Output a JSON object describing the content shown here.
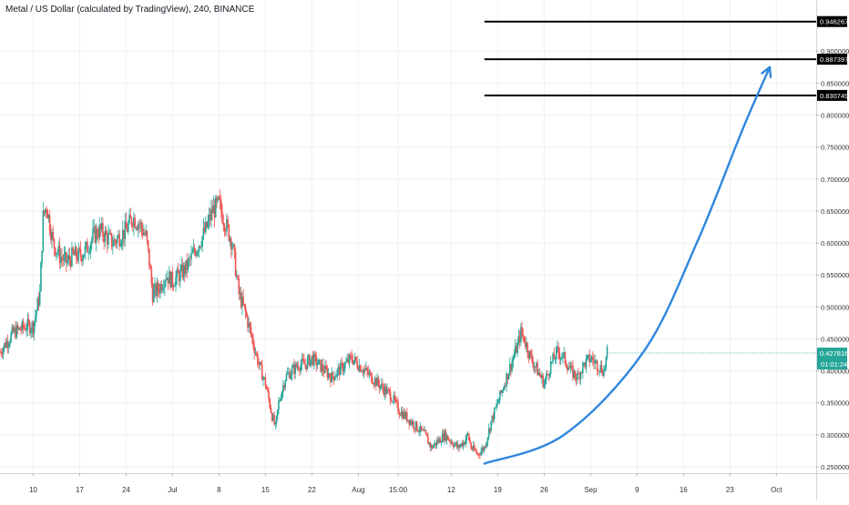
{
  "header": {
    "title": "Metal / US Dollar (calculated by TradingView), 240, BINANCE"
  },
  "chart_data": {
    "type": "candlestick",
    "symbol": "Metal / US Dollar",
    "interval": "240",
    "exchange": "BINANCE",
    "ylim": [
      0.24,
      0.98
    ],
    "y_ticks": [
      "0.250000",
      "0.300000",
      "0.350000",
      "0.400000",
      "0.450000",
      "0.500000",
      "0.550000",
      "0.600000",
      "0.650000",
      "0.700000",
      "0.750000",
      "0.800000",
      "0.850000",
      "0.900000"
    ],
    "y_tick_values": [
      0.25,
      0.3,
      0.35,
      0.4,
      0.45,
      0.5,
      0.55,
      0.6,
      0.65,
      0.7,
      0.75,
      0.8,
      0.85,
      0.9
    ],
    "x_ticks": [
      "10",
      "17",
      "24",
      "Jul",
      "8",
      "15",
      "22",
      "Aug",
      "15:00",
      "12",
      "19",
      "26",
      "Sep",
      "9",
      "16",
      "23",
      "Oct"
    ],
    "x_tick_index": [
      0,
      7,
      14,
      21,
      28,
      35,
      42,
      49,
      55,
      63,
      70,
      77,
      84,
      91,
      98,
      105,
      112
    ],
    "x_index_range": [
      -5,
      118
    ],
    "grid": true,
    "candle_colors": {
      "up": "#26a69a",
      "down": "#ef5350"
    },
    "close_path": [
      [
        -5,
        0.43
      ],
      [
        -3,
        0.46
      ],
      [
        -1,
        0.47
      ],
      [
        0,
        0.47
      ],
      [
        1,
        0.52
      ],
      [
        1.5,
        0.64
      ],
      [
        2,
        0.66
      ],
      [
        3,
        0.6
      ],
      [
        4,
        0.58
      ],
      [
        5,
        0.57
      ],
      [
        6,
        0.58
      ],
      [
        7,
        0.58
      ],
      [
        8,
        0.59
      ],
      [
        9,
        0.61
      ],
      [
        10,
        0.62
      ],
      [
        11,
        0.61
      ],
      [
        12,
        0.6
      ],
      [
        13,
        0.61
      ],
      [
        14,
        0.62
      ],
      [
        15,
        0.64
      ],
      [
        16,
        0.63
      ],
      [
        17,
        0.61
      ],
      [
        17.5,
        0.57
      ],
      [
        18,
        0.52
      ],
      [
        19,
        0.53
      ],
      [
        20,
        0.55
      ],
      [
        21,
        0.54
      ],
      [
        22,
        0.55
      ],
      [
        23,
        0.56
      ],
      [
        24,
        0.58
      ],
      [
        25,
        0.6
      ],
      [
        26,
        0.62
      ],
      [
        27,
        0.65
      ],
      [
        28,
        0.66
      ],
      [
        29,
        0.63
      ],
      [
        30,
        0.6
      ],
      [
        30.5,
        0.56
      ],
      [
        31,
        0.52
      ],
      [
        32,
        0.49
      ],
      [
        33,
        0.45
      ],
      [
        34,
        0.41
      ],
      [
        35,
        0.38
      ],
      [
        36,
        0.33
      ],
      [
        36.5,
        0.31
      ],
      [
        37,
        0.35
      ],
      [
        38,
        0.39
      ],
      [
        39,
        0.4
      ],
      [
        40,
        0.41
      ],
      [
        41,
        0.41
      ],
      [
        42,
        0.42
      ],
      [
        43,
        0.41
      ],
      [
        44,
        0.4
      ],
      [
        45,
        0.39
      ],
      [
        46,
        0.4
      ],
      [
        47,
        0.41
      ],
      [
        48,
        0.42
      ],
      [
        49,
        0.41
      ],
      [
        50,
        0.4
      ],
      [
        51,
        0.39
      ],
      [
        52,
        0.38
      ],
      [
        53,
        0.37
      ],
      [
        54,
        0.36
      ],
      [
        55,
        0.34
      ],
      [
        56,
        0.33
      ],
      [
        57,
        0.32
      ],
      [
        58,
        0.31
      ],
      [
        59,
        0.3
      ],
      [
        60,
        0.28
      ],
      [
        61,
        0.29
      ],
      [
        62,
        0.3
      ],
      [
        63,
        0.29
      ],
      [
        64,
        0.28
      ],
      [
        65,
        0.29
      ],
      [
        65.5,
        0.3
      ],
      [
        66,
        0.28
      ],
      [
        67,
        0.27
      ],
      [
        68,
        0.28
      ],
      [
        69,
        0.32
      ],
      [
        70,
        0.35
      ],
      [
        71,
        0.38
      ],
      [
        72,
        0.41
      ],
      [
        73,
        0.44
      ],
      [
        73.5,
        0.46
      ],
      [
        74,
        0.45
      ],
      [
        75,
        0.42
      ],
      [
        76,
        0.4
      ],
      [
        77,
        0.38
      ],
      [
        78,
        0.41
      ],
      [
        79,
        0.43
      ],
      [
        80,
        0.42
      ],
      [
        81,
        0.4
      ],
      [
        82,
        0.39
      ],
      [
        83,
        0.41
      ],
      [
        84,
        0.42
      ],
      [
        85,
        0.41
      ],
      [
        86,
        0.4
      ],
      [
        86.5,
        0.4278
      ]
    ],
    "last_price": {
      "value": 0.427816,
      "label": "0.427816",
      "countdown": "01:01:24",
      "color": "#26a69a"
    },
    "horizontal_levels": [
      {
        "value": 0.946267,
        "label": "0.946267",
        "from_index": 68
      },
      {
        "value": 0.887397,
        "label": "0.887397",
        "from_index": 68
      },
      {
        "value": 0.830749,
        "label": "0.830749",
        "from_index": 68
      }
    ],
    "projection_arrow": {
      "color": "#2e86de",
      "points": [
        [
          68,
          0.255
        ],
        [
          80,
          0.3
        ],
        [
          92,
          0.43
        ],
        [
          100,
          0.6
        ],
        [
          107,
          0.78
        ],
        [
          111,
          0.875
        ]
      ]
    }
  }
}
